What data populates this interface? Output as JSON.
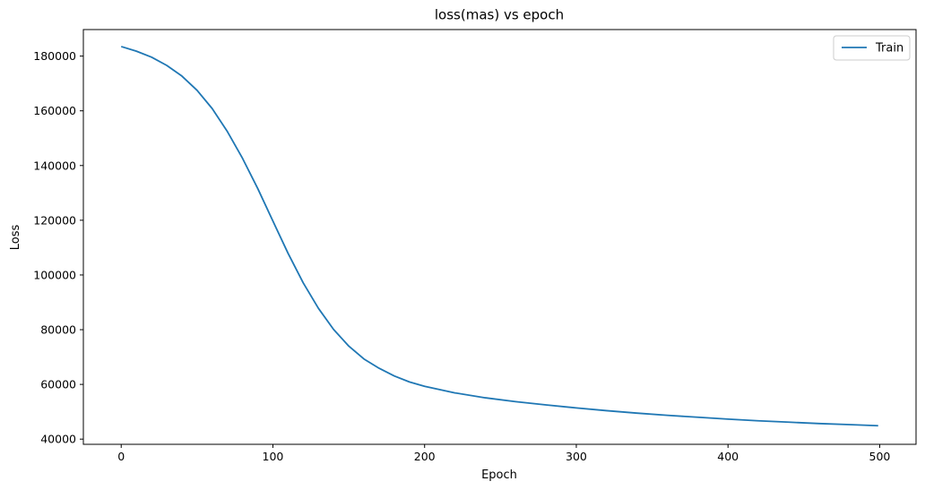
{
  "chart_data": {
    "type": "line",
    "title": "loss(mas) vs epoch",
    "xlabel": "Epoch",
    "ylabel": "Loss",
    "xlim": [
      -24.95,
      523.95
    ],
    "ylim": [
      38100,
      189700
    ],
    "xticks": [
      0,
      100,
      200,
      300,
      400,
      500
    ],
    "yticks": [
      40000,
      60000,
      80000,
      100000,
      120000,
      140000,
      160000,
      180000
    ],
    "grid": false,
    "legend_position": "top-right",
    "series": [
      {
        "name": "Train",
        "color": "#1f77b4",
        "x": [
          0,
          10,
          20,
          30,
          40,
          50,
          60,
          70,
          80,
          90,
          100,
          110,
          120,
          130,
          140,
          150,
          160,
          170,
          180,
          190,
          200,
          220,
          240,
          260,
          280,
          300,
          320,
          340,
          360,
          380,
          400,
          420,
          440,
          460,
          480,
          499
        ],
        "y": [
          183500,
          181800,
          179600,
          176600,
          172700,
          167500,
          160800,
          152400,
          142600,
          131600,
          119700,
          107900,
          97100,
          87800,
          80100,
          74000,
          69300,
          65900,
          63100,
          60900,
          59300,
          56900,
          55100,
          53700,
          52500,
          51400,
          50400,
          49500,
          48700,
          48000,
          47300,
          46700,
          46200,
          45700,
          45300,
          44900
        ]
      }
    ]
  }
}
